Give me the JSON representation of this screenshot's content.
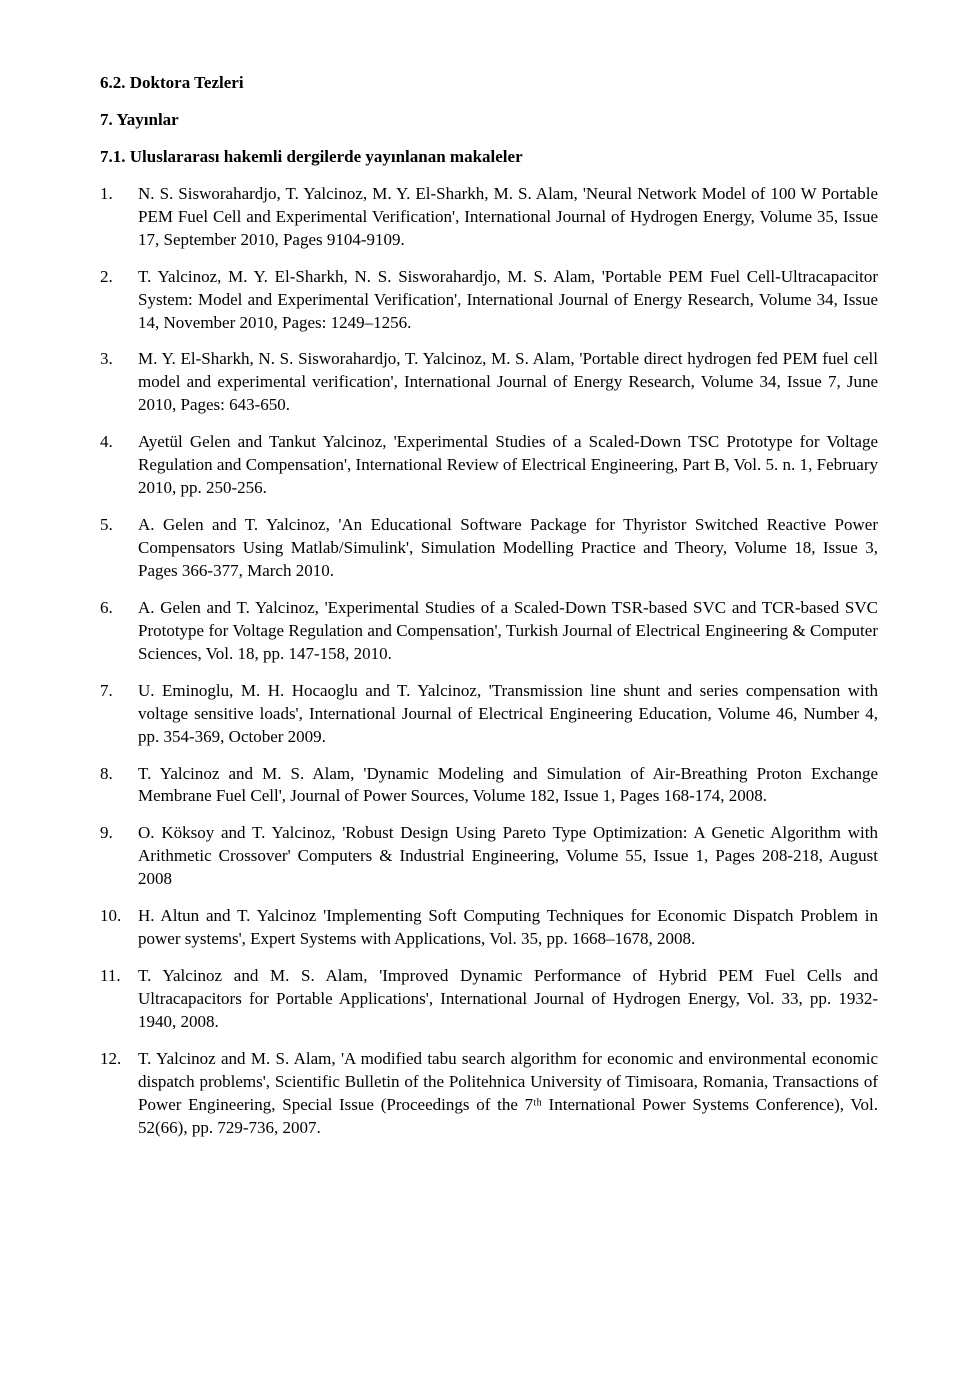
{
  "headings": {
    "h62": "6.2. Doktora Tezleri",
    "h7": "7.  Yayınlar",
    "h71": "7.1. Uluslararası hakemli dergilerde yayınlanan makaleler"
  },
  "entries": [
    {
      "num": "1.",
      "text": "N. S. Sisworahardjo, T. Yalcinoz, M. Y. El-Sharkh, M. S. Alam, 'Neural Network Model of 100 W Portable PEM Fuel Cell and Experimental Verification', International Journal of Hydrogen Energy, Volume 35, Issue 17, September 2010, Pages 9104-9109."
    },
    {
      "num": "2.",
      "text": "T. Yalcinoz, M. Y. El-Sharkh, N. S. Sisworahardjo, M. S. Alam, 'Portable PEM Fuel Cell-Ultracapacitor System: Model and Experimental Verification', International Journal of Energy Research, Volume 34, Issue 14, November 2010, Pages: 1249–1256."
    },
    {
      "num": "3.",
      "text": "M. Y. El-Sharkh, N. S. Sisworahardjo, T. Yalcinoz, M. S. Alam, 'Portable direct hydrogen fed PEM fuel cell model and experimental verification', International Journal of Energy Research, Volume 34, Issue 7, June 2010, Pages: 643-650."
    },
    {
      "num": "4.",
      "text": "Ayetül Gelen and Tankut Yalcinoz, 'Experimental Studies of a Scaled-Down TSC Prototype for Voltage Regulation and Compensation', International Review of Electrical Engineering, Part B, Vol. 5. n. 1, February 2010, pp. 250-256."
    },
    {
      "num": "5.",
      "text": "A. Gelen and T. Yalcinoz, 'An Educational Software Package for Thyristor Switched Reactive Power Compensators Using Matlab/Simulink', Simulation Modelling Practice and Theory, Volume 18, Issue 3, Pages 366-377, March 2010."
    },
    {
      "num": "6.",
      "text": "A. Gelen and T. Yalcinoz, 'Experimental Studies of a Scaled-Down TSR-based SVC and TCR-based SVC  Prototype for Voltage Regulation and Compensation', Turkish Journal of Electrical Engineering & Computer Sciences, Vol. 18, pp. 147-158, 2010."
    },
    {
      "num": "7.",
      "text": "U. Eminoglu, M. H. Hocaoglu and T. Yalcinoz, 'Transmission line shunt and series compensation with voltage sensitive loads', International Journal of Electrical Engineering Education, Volume 46, Number 4, pp. 354-369, October 2009."
    },
    {
      "num": "8.",
      "text": "T. Yalcinoz and M. S. Alam, 'Dynamic Modeling and Simulation of Air-Breathing Proton Exchange Membrane Fuel Cell', Journal of Power Sources, Volume 182, Issue 1, Pages 168-174, 2008."
    },
    {
      "num": "9.",
      "text": "O. Köksoy and T. Yalcinoz, 'Robust Design Using Pareto Type Optimization: A Genetic Algorithm with Arithmetic Crossover' Computers & Industrial Engineering, Volume 55, Issue 1, Pages 208-218, August 2008"
    },
    {
      "num": "10.",
      "text": "H. Altun and T. Yalcinoz 'Implementing Soft Computing Techniques for Economic Dispatch Problem in power systems', Expert Systems with Applications, Vol. 35, pp. 1668–1678, 2008."
    },
    {
      "num": "11.",
      "text": "T. Yalcinoz and M. S. Alam, 'Improved Dynamic Performance of Hybrid PEM Fuel Cells and Ultracapacitors for Portable Applications', International Journal of Hydrogen Energy, Vol. 33, pp. 1932-1940, 2008."
    },
    {
      "num": "12.",
      "text": "T. Yalcinoz and M. S. Alam, 'A modified tabu search algorithm for economic and environmental economic dispatch problems', Scientific Bulletin of the Politehnica University of Timisoara, Romania, Transactions of Power Engineering, Special Issue (Proceedings of the 7ᵗʰ International Power Systems Conference), Vol. 52(66), pp. 729-736, 2007."
    }
  ]
}
